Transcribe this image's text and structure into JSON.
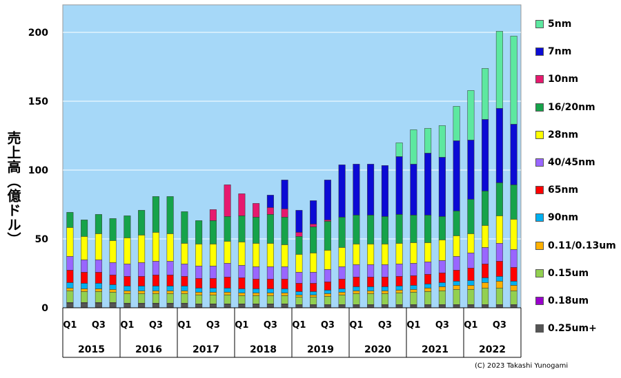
{
  "chart_data": {
    "type": "bar",
    "stacked": true,
    "ylabel": "売上高（億ドル）",
    "ylim": [
      0,
      220
    ],
    "yticks": [
      "0",
      "50",
      "100",
      "150",
      "200"
    ],
    "grid": true,
    "legend_position": "right",
    "quarter_labels": [
      "Q1",
      "",
      "Q3",
      ""
    ],
    "years": [
      "2015",
      "2016",
      "2017",
      "2018",
      "2019",
      "2020",
      "2021",
      "2022"
    ],
    "copyright": "(C) 2023 Takashi Yunogami",
    "series": [
      {
        "name": "0.25um+",
        "color": "#555555",
        "values": [
          3.5,
          3.5,
          3.5,
          3.5,
          3,
          3,
          3,
          3,
          3,
          2.5,
          2.5,
          2.5,
          2.5,
          2.5,
          2.5,
          2.5,
          2,
          2,
          2,
          2,
          2,
          2,
          2,
          2,
          2,
          2,
          2,
          2,
          2,
          2,
          2,
          2
        ]
      },
      {
        "name": "0.18um",
        "color": "#9900cc",
        "values": [
          0.3,
          0.3,
          0.3,
          0.3,
          0.3,
          0.3,
          0.3,
          0.3,
          0.3,
          0.3,
          0.3,
          0.3,
          0.3,
          0.3,
          0.3,
          0.3,
          0.3,
          0.3,
          0.3,
          0.3,
          0.3,
          0.3,
          0.3,
          0.3,
          0.3,
          0.3,
          0.3,
          0.3,
          0.3,
          0.3,
          0.3,
          0.3
        ]
      },
      {
        "name": "0.15um",
        "color": "#92d050",
        "values": [
          8.5,
          8,
          8,
          7.5,
          7,
          7,
          7,
          7,
          7,
          6.5,
          6.5,
          6.5,
          6,
          6,
          6,
          6,
          5.5,
          5.5,
          6,
          7,
          8,
          8,
          8,
          8.5,
          9,
          9.5,
          10,
          11,
          11,
          12,
          12,
          10
        ]
      },
      {
        "name": "0.11/0.13um",
        "color": "#ffb000",
        "values": [
          2,
          2,
          2,
          2,
          2,
          2,
          2,
          2,
          2,
          2,
          2,
          2,
          2,
          2,
          2,
          2,
          1.5,
          1.5,
          2,
          2,
          2,
          2,
          2,
          2,
          2,
          2.5,
          3,
          3,
          3,
          4,
          5,
          4
        ]
      },
      {
        "name": "90nm",
        "color": "#00b0f0",
        "values": [
          4,
          4,
          4,
          3.5,
          3.5,
          3.5,
          3.5,
          3.5,
          3.5,
          3,
          3,
          3,
          3,
          3,
          3,
          3,
          2.5,
          2.5,
          2.5,
          2.5,
          3,
          3,
          3,
          3,
          3,
          3,
          3,
          3,
          3.5,
          3.5,
          3.5,
          3
        ]
      },
      {
        "name": "65nm",
        "color": "#ff0000",
        "values": [
          9,
          8,
          8,
          7,
          7,
          7,
          8,
          8,
          7,
          7,
          7,
          8,
          8,
          7,
          7,
          7,
          6,
          6,
          6,
          7,
          7,
          7,
          7,
          7,
          7,
          7,
          7,
          8,
          9,
          10,
          11,
          10
        ]
      },
      {
        "name": "40/45nm",
        "color": "#9966ff",
        "values": [
          10,
          9,
          9,
          9,
          9,
          10,
          10,
          10,
          9,
          9,
          9,
          10,
          9,
          9,
          9,
          9,
          8,
          8,
          9,
          9,
          9,
          9,
          9,
          9,
          9,
          9,
          9,
          10,
          11,
          12,
          13,
          13
        ]
      },
      {
        "name": "28nm",
        "color": "#ffff00",
        "values": [
          21,
          17,
          19,
          16,
          19,
          20,
          21,
          20,
          15,
          16,
          16,
          16,
          17,
          17,
          17,
          16,
          13,
          14,
          14,
          14,
          15,
          15,
          15,
          15,
          15,
          14,
          15,
          15,
          14,
          16,
          20,
          22
        ]
      },
      {
        "name": "16/20nm",
        "color": "#16a34a",
        "values": [
          11,
          12,
          14,
          16,
          16,
          18,
          26,
          27,
          23,
          17,
          17,
          18,
          19,
          19,
          21,
          20,
          13,
          19,
          21,
          22,
          21,
          21,
          20,
          21,
          20,
          20,
          17,
          18,
          25,
          25,
          24,
          25
        ]
      },
      {
        "name": "10nm",
        "color": "#e6196e",
        "values": [
          0,
          0,
          0,
          0,
          0,
          0,
          0,
          0,
          0,
          0,
          8,
          23,
          16,
          10,
          5,
          6,
          3,
          2,
          1,
          0,
          0,
          0,
          0,
          0,
          0,
          0,
          0,
          0,
          0,
          0,
          0,
          0
        ]
      },
      {
        "name": "7nm",
        "color": "#0b0bd4",
        "values": [
          0,
          0,
          0,
          0,
          0,
          0,
          0,
          0,
          0,
          0,
          0,
          0,
          0,
          0,
          9,
          21,
          16,
          17,
          29,
          38,
          37,
          37,
          37,
          42,
          37,
          45,
          43,
          51,
          43,
          52,
          54,
          44
        ]
      },
      {
        "name": "5nm",
        "color": "#5de8a0",
        "values": [
          0,
          0,
          0,
          0,
          0,
          0,
          0,
          0,
          0,
          0,
          0,
          0,
          0,
          0,
          0,
          0,
          0,
          0,
          0,
          0,
          0,
          0,
          0,
          10,
          25,
          18,
          23,
          25,
          36,
          37,
          56,
          64
        ]
      }
    ]
  }
}
